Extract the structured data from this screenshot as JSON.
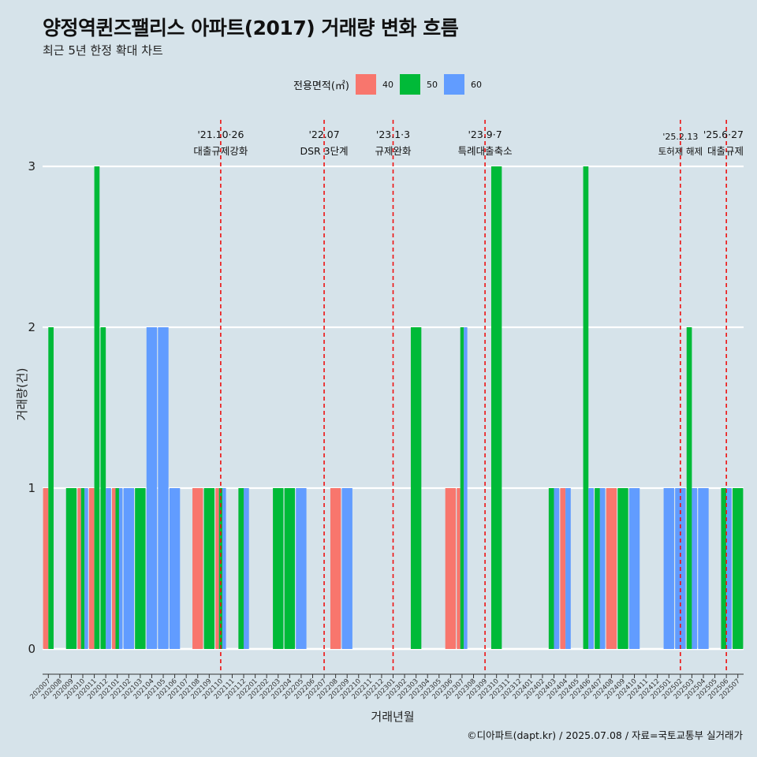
{
  "chart_data": {
    "type": "bar",
    "title": "양정역퀸즈팰리스 아파트(2017) 거래량 변화 흐름",
    "subtitle": "최근 5년 한정 확대 차트",
    "xlabel": "거래년월",
    "ylabel": "거래량(건)",
    "ylim": [
      0,
      3
    ],
    "yticks": [
      0,
      1,
      2,
      3
    ],
    "legend": {
      "title": "전용면적(㎡)",
      "position": "top"
    },
    "categories": [
      "202007",
      "202008",
      "202009",
      "202010",
      "202011",
      "202012",
      "202101",
      "202102",
      "202103",
      "202104",
      "202105",
      "202106",
      "202107",
      "202108",
      "202109",
      "202110",
      "202111",
      "202112",
      "202201",
      "202202",
      "202203",
      "202204",
      "202205",
      "202206",
      "202207",
      "202208",
      "202209",
      "202210",
      "202211",
      "202212",
      "202301",
      "202302",
      "202303",
      "202304",
      "202305",
      "202306",
      "202307",
      "202308",
      "202309",
      "202310",
      "202311",
      "202312",
      "202401",
      "202402",
      "202403",
      "202404",
      "202405",
      "202406",
      "202407",
      "202408",
      "202409",
      "202410",
      "202411",
      "202412",
      "202501",
      "202502",
      "202503",
      "202504",
      "202505",
      "202506",
      "202507"
    ],
    "series": [
      {
        "name": "40",
        "color": "#f8766d",
        "values": [
          1,
          0,
          0,
          1,
          1,
          0,
          1,
          0,
          0,
          0,
          0,
          0,
          0,
          1,
          0,
          1,
          0,
          0,
          0,
          0,
          0,
          0,
          0,
          0,
          0,
          1,
          0,
          0,
          0,
          0,
          0,
          0,
          0,
          0,
          0,
          1,
          1,
          0,
          0,
          0,
          0,
          0,
          0,
          0,
          0,
          1,
          0,
          0,
          0,
          1,
          0,
          0,
          0,
          0,
          0,
          0,
          0,
          0,
          0,
          0,
          0
        ]
      },
      {
        "name": "50",
        "color": "#00ba38",
        "values": [
          2,
          0,
          1,
          1,
          3,
          2,
          1,
          0,
          1,
          0,
          0,
          0,
          0,
          0,
          1,
          1,
          0,
          1,
          0,
          0,
          1,
          1,
          0,
          0,
          0,
          0,
          0,
          0,
          0,
          0,
          0,
          0,
          2,
          0,
          0,
          0,
          2,
          0,
          0,
          3,
          0,
          0,
          0,
          0,
          1,
          0,
          0,
          3,
          1,
          0,
          1,
          0,
          0,
          0,
          0,
          0,
          2,
          0,
          0,
          1,
          1
        ]
      },
      {
        "name": "60",
        "color": "#619cff",
        "values": [
          0,
          0,
          0,
          1,
          0,
          1,
          1,
          1,
          0,
          2,
          2,
          1,
          0,
          0,
          0,
          1,
          0,
          1,
          0,
          0,
          0,
          0,
          1,
          0,
          0,
          0,
          1,
          0,
          0,
          0,
          0,
          0,
          0,
          0,
          0,
          0,
          2,
          0,
          0,
          0,
          0,
          0,
          0,
          0,
          1,
          1,
          0,
          1,
          1,
          0,
          0,
          1,
          0,
          0,
          1,
          1,
          1,
          1,
          0,
          1,
          0
        ]
      }
    ],
    "annotations": [
      {
        "at": "202110",
        "date": "'21.10·26",
        "label": "대출규제강화"
      },
      {
        "at": "202207",
        "date": "'22.07",
        "label": "DSR 3단계"
      },
      {
        "at": "202301",
        "date": "'23.1·3",
        "label": "규제완화"
      },
      {
        "at": "202309",
        "date": "'23.9·7",
        "label": "특례대출축소"
      },
      {
        "at": "202502",
        "date": "'25.2.13",
        "label": "토허제 해제"
      },
      {
        "at": "202506",
        "date": "'25.6·27",
        "label": "대출규제"
      }
    ],
    "grid": {
      "major_y": true,
      "x": false
    },
    "caption": "©디아파트(dapt.kr) / 2025.07.08 / 자료=국토교통부 실거래가"
  }
}
